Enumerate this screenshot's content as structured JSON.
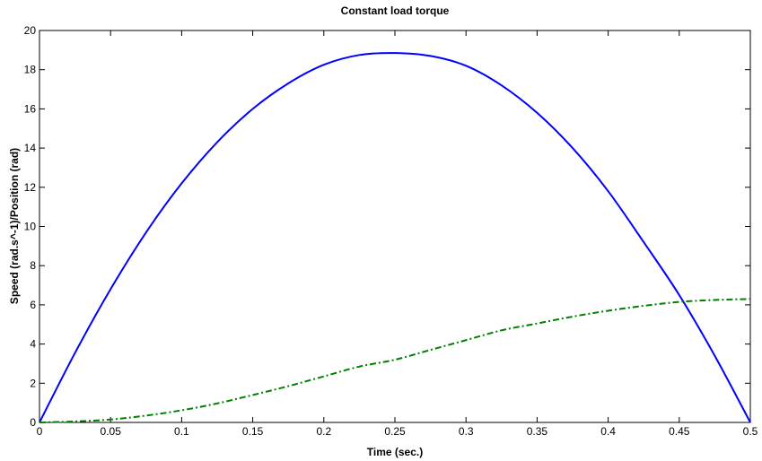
{
  "chart_data": {
    "type": "line",
    "title": "Constant load torque",
    "xlabel": "Time (sec.)",
    "ylabel": "Speed (rad.s^-1)/Position (rad)",
    "xlim": [
      0,
      0.5
    ],
    "ylim": [
      0,
      20
    ],
    "xticks": [
      0,
      0.05,
      0.1,
      0.15,
      0.2,
      0.25,
      0.3,
      0.35,
      0.4,
      0.45,
      0.5
    ],
    "xtick_labels": [
      "0",
      "0.05",
      "0.1",
      "0.15",
      "0.2",
      "0.25",
      "0.3",
      "0.35",
      "0.4",
      "0.45",
      "0.5"
    ],
    "yticks": [
      0,
      2,
      4,
      6,
      8,
      10,
      12,
      14,
      16,
      18,
      20
    ],
    "ytick_labels": [
      "0",
      "2",
      "4",
      "6",
      "8",
      "10",
      "12",
      "14",
      "16",
      "18",
      "20"
    ],
    "grid": false,
    "legend": "none",
    "x": [
      0,
      0.025,
      0.05,
      0.075,
      0.1,
      0.125,
      0.15,
      0.175,
      0.2,
      0.225,
      0.25,
      0.275,
      0.3,
      0.325,
      0.35,
      0.375,
      0.4,
      0.425,
      0.45,
      0.475,
      0.5
    ],
    "series": [
      {
        "color": "#0000ff",
        "style": "solid",
        "values": [
          0,
          3.55,
          6.8,
          9.7,
          12.2,
          14.3,
          16.0,
          17.3,
          18.25,
          18.75,
          18.85,
          18.7,
          18.2,
          17.2,
          15.8,
          14.0,
          11.8,
          9.2,
          6.5,
          3.4,
          0
        ]
      },
      {
        "color": "#008000",
        "style": "dash-dot",
        "values": [
          0,
          0.05,
          0.15,
          0.35,
          0.62,
          0.97,
          1.4,
          1.85,
          2.35,
          2.85,
          3.2,
          3.7,
          4.2,
          4.7,
          5.05,
          5.4,
          5.7,
          5.95,
          6.15,
          6.25,
          6.3
        ]
      }
    ]
  }
}
